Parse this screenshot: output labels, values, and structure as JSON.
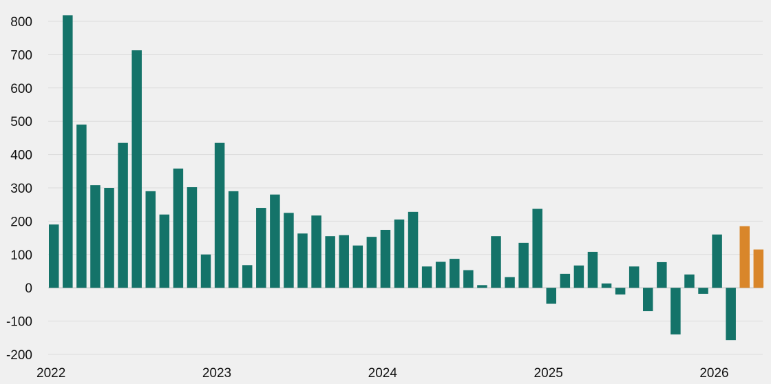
{
  "chart_data": {
    "type": "bar",
    "title": "",
    "xlabel": "",
    "ylabel": "",
    "ylim": [
      -200,
      800
    ],
    "yticks": [
      800,
      700,
      600,
      500,
      400,
      300,
      200,
      100,
      0,
      -100,
      -200
    ],
    "xtick_labels": [
      "2022",
      "2023",
      "2024",
      "2025",
      "2026"
    ],
    "grid": true,
    "colors": {
      "actual": "#147369",
      "projected": "#d9862a"
    },
    "series": [
      {
        "values": [
          190,
          818,
          490,
          308,
          300,
          435,
          713,
          290,
          220,
          358,
          302,
          100,
          435,
          290,
          68,
          240,
          280,
          225,
          163,
          217,
          155,
          158,
          127,
          153,
          174,
          205,
          228,
          64,
          78,
          87,
          53,
          8,
          155,
          32,
          135,
          237,
          -48,
          42,
          67,
          108,
          13,
          -20,
          64,
          -70,
          77,
          -140,
          40,
          -18,
          160,
          -157,
          185,
          115
        ],
        "kinds": [
          "a",
          "a",
          "a",
          "a",
          "a",
          "a",
          "a",
          "a",
          "a",
          "a",
          "a",
          "a",
          "a",
          "a",
          "a",
          "a",
          "a",
          "a",
          "a",
          "a",
          "a",
          "a",
          "a",
          "a",
          "a",
          "a",
          "a",
          "a",
          "a",
          "a",
          "a",
          "a",
          "a",
          "a",
          "a",
          "a",
          "a",
          "a",
          "a",
          "a",
          "a",
          "a",
          "a",
          "a",
          "a",
          "a",
          "a",
          "a",
          "a",
          "a",
          "p",
          "p"
        ]
      }
    ]
  }
}
